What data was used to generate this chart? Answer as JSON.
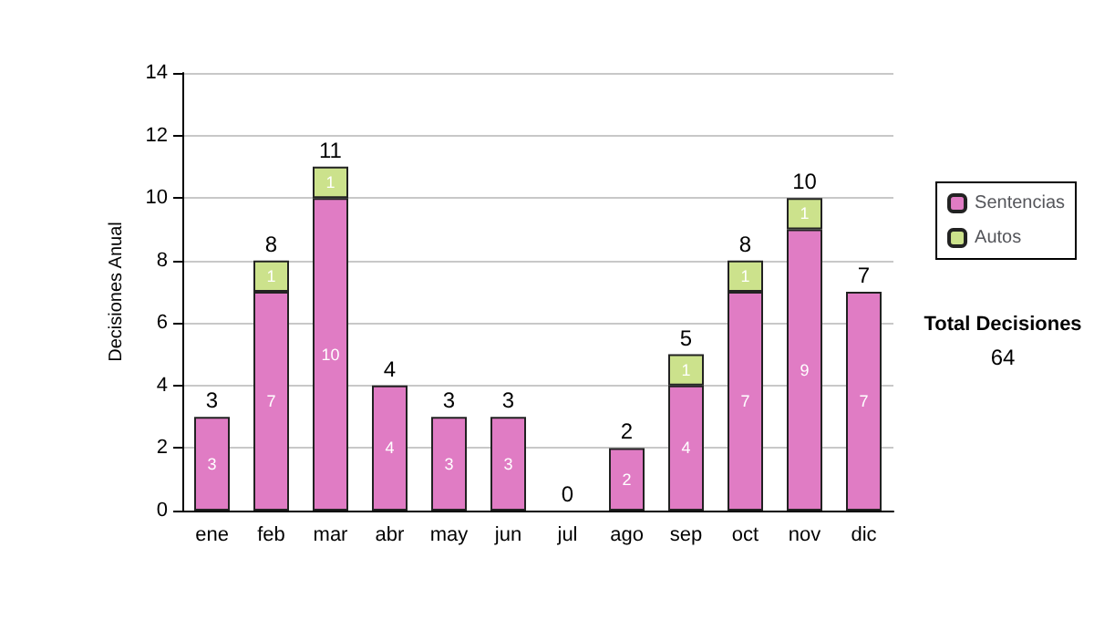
{
  "chart_data": {
    "type": "bar",
    "ylabel": "Decisiones Anual",
    "categories": [
      "ene",
      "feb",
      "mar",
      "abr",
      "may",
      "jun",
      "jul",
      "ago",
      "sep",
      "oct",
      "nov",
      "dic"
    ],
    "series": [
      {
        "name": "Sentencias",
        "color": "#e07cc4",
        "values": [
          3,
          7,
          10,
          4,
          3,
          3,
          0,
          2,
          4,
          7,
          9,
          7
        ],
        "value_labels": [
          "3",
          "7",
          "10",
          "4",
          "3",
          "3",
          null,
          "2",
          "4",
          "7",
          "9",
          "7"
        ]
      },
      {
        "name": "Autos",
        "color": "#cce28c",
        "values": [
          0,
          1,
          1,
          0,
          0,
          0,
          0,
          0,
          1,
          1,
          1,
          0
        ],
        "value_labels": [
          null,
          "1",
          "1",
          null,
          null,
          null,
          null,
          null,
          "1",
          "1",
          "1",
          null
        ]
      }
    ],
    "stacked": true,
    "totals": [
      "3",
      "8",
      "11",
      "4",
      "3",
      "3",
      "0",
      "2",
      "5",
      "8",
      "10",
      "7"
    ],
    "ylim": [
      0,
      14
    ],
    "yticks": [
      0,
      2,
      4,
      6,
      8,
      10,
      12,
      14
    ],
    "grid": "y",
    "legend": "right",
    "annotations": [
      "Total Decisiones",
      "64"
    ]
  }
}
